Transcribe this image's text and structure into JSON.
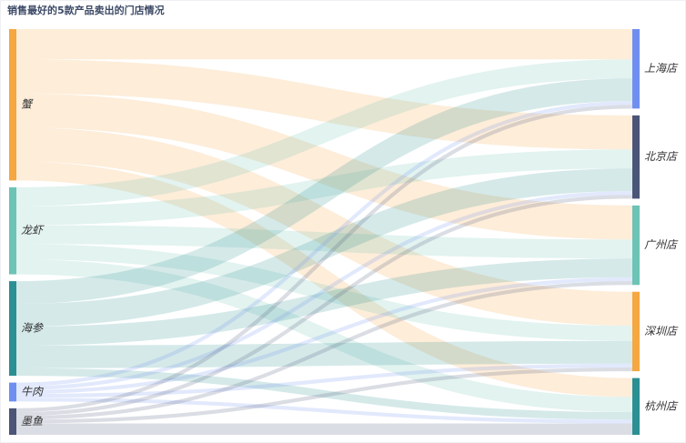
{
  "chart_data": {
    "type": "sankey",
    "title": "销售最好的5款产品卖出的门店情况",
    "nodes": [
      {
        "name": "蟹",
        "color": "#f5a742"
      },
      {
        "name": "龙虾",
        "color": "#6cc3b6"
      },
      {
        "name": "海参",
        "color": "#2b8f93"
      },
      {
        "name": "牛肉",
        "color": "#6f8ff0"
      },
      {
        "name": "墨鱼",
        "color": "#4a5578"
      },
      {
        "name": "上海店",
        "color": "#6f8ff0"
      },
      {
        "name": "北京店",
        "color": "#4a5578"
      },
      {
        "name": "广州店",
        "color": "#6cc3b6"
      },
      {
        "name": "深圳店",
        "color": "#f5a742"
      },
      {
        "name": "杭州店",
        "color": "#2b8f93"
      }
    ],
    "links": [
      {
        "source": "蟹",
        "target": "上海店",
        "value": 8
      },
      {
        "source": "蟹",
        "target": "北京店",
        "value": 9
      },
      {
        "source": "蟹",
        "target": "广州店",
        "value": 9
      },
      {
        "source": "蟹",
        "target": "深圳店",
        "value": 9
      },
      {
        "source": "蟹",
        "target": "杭州店",
        "value": 5
      },
      {
        "source": "龙虾",
        "target": "上海店",
        "value": 5
      },
      {
        "source": "龙虾",
        "target": "北京店",
        "value": 5
      },
      {
        "source": "龙虾",
        "target": "广州店",
        "value": 5
      },
      {
        "source": "龙虾",
        "target": "深圳店",
        "value": 4
      },
      {
        "source": "龙虾",
        "target": "杭州店",
        "value": 4
      },
      {
        "source": "海参",
        "target": "上海店",
        "value": 6
      },
      {
        "source": "海参",
        "target": "北京店",
        "value": 6
      },
      {
        "source": "海参",
        "target": "广州店",
        "value": 5
      },
      {
        "source": "海参",
        "target": "深圳店",
        "value": 6
      },
      {
        "source": "海参",
        "target": "杭州店",
        "value": 2
      },
      {
        "source": "牛肉",
        "target": "上海店",
        "value": 1
      },
      {
        "source": "牛肉",
        "target": "北京店",
        "value": 1
      },
      {
        "source": "牛肉",
        "target": "广州店",
        "value": 1
      },
      {
        "source": "牛肉",
        "target": "深圳店",
        "value": 1
      },
      {
        "source": "牛肉",
        "target": "杭州店",
        "value": 1
      },
      {
        "source": "墨鱼",
        "target": "上海店",
        "value": 1
      },
      {
        "source": "墨鱼",
        "target": "北京店",
        "value": 1
      },
      {
        "source": "墨鱼",
        "target": "广州店",
        "value": 1
      },
      {
        "source": "墨鱼",
        "target": "深圳店",
        "value": 1
      },
      {
        "source": "墨鱼",
        "target": "杭州店",
        "value": 3
      }
    ]
  }
}
